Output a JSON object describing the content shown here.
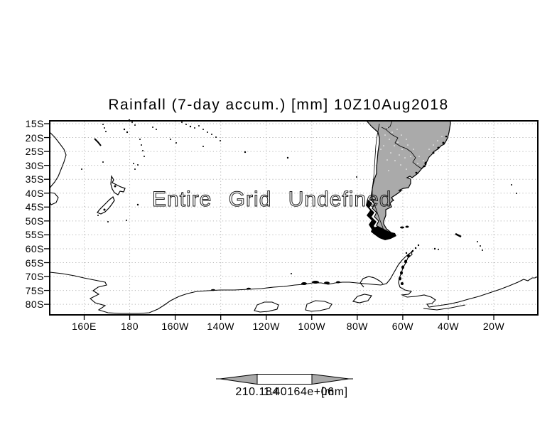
{
  "title": "Rainfall (7-day accum.) [mm] 10Z10Aug2018",
  "map": {
    "message": "Entire Grid Undefined",
    "lat_labels": [
      "15S",
      "20S",
      "25S",
      "30S",
      "35S",
      "40S",
      "45S",
      "50S",
      "55S",
      "60S",
      "65S",
      "70S",
      "75S",
      "80S"
    ],
    "lon_labels": [
      "160E",
      "180",
      "160W",
      "140W",
      "120W",
      "100W",
      "80W",
      "60W",
      "40W",
      "20W"
    ],
    "land_color": "#aaaaaa",
    "grid_color": "#b5b5b5",
    "coast_color": "#000000"
  },
  "colorbar": {
    "left_value": "210.184",
    "right_value": "1.40164e+06",
    "unit": "[mm]",
    "fill_color": "#aaaaaa"
  }
}
